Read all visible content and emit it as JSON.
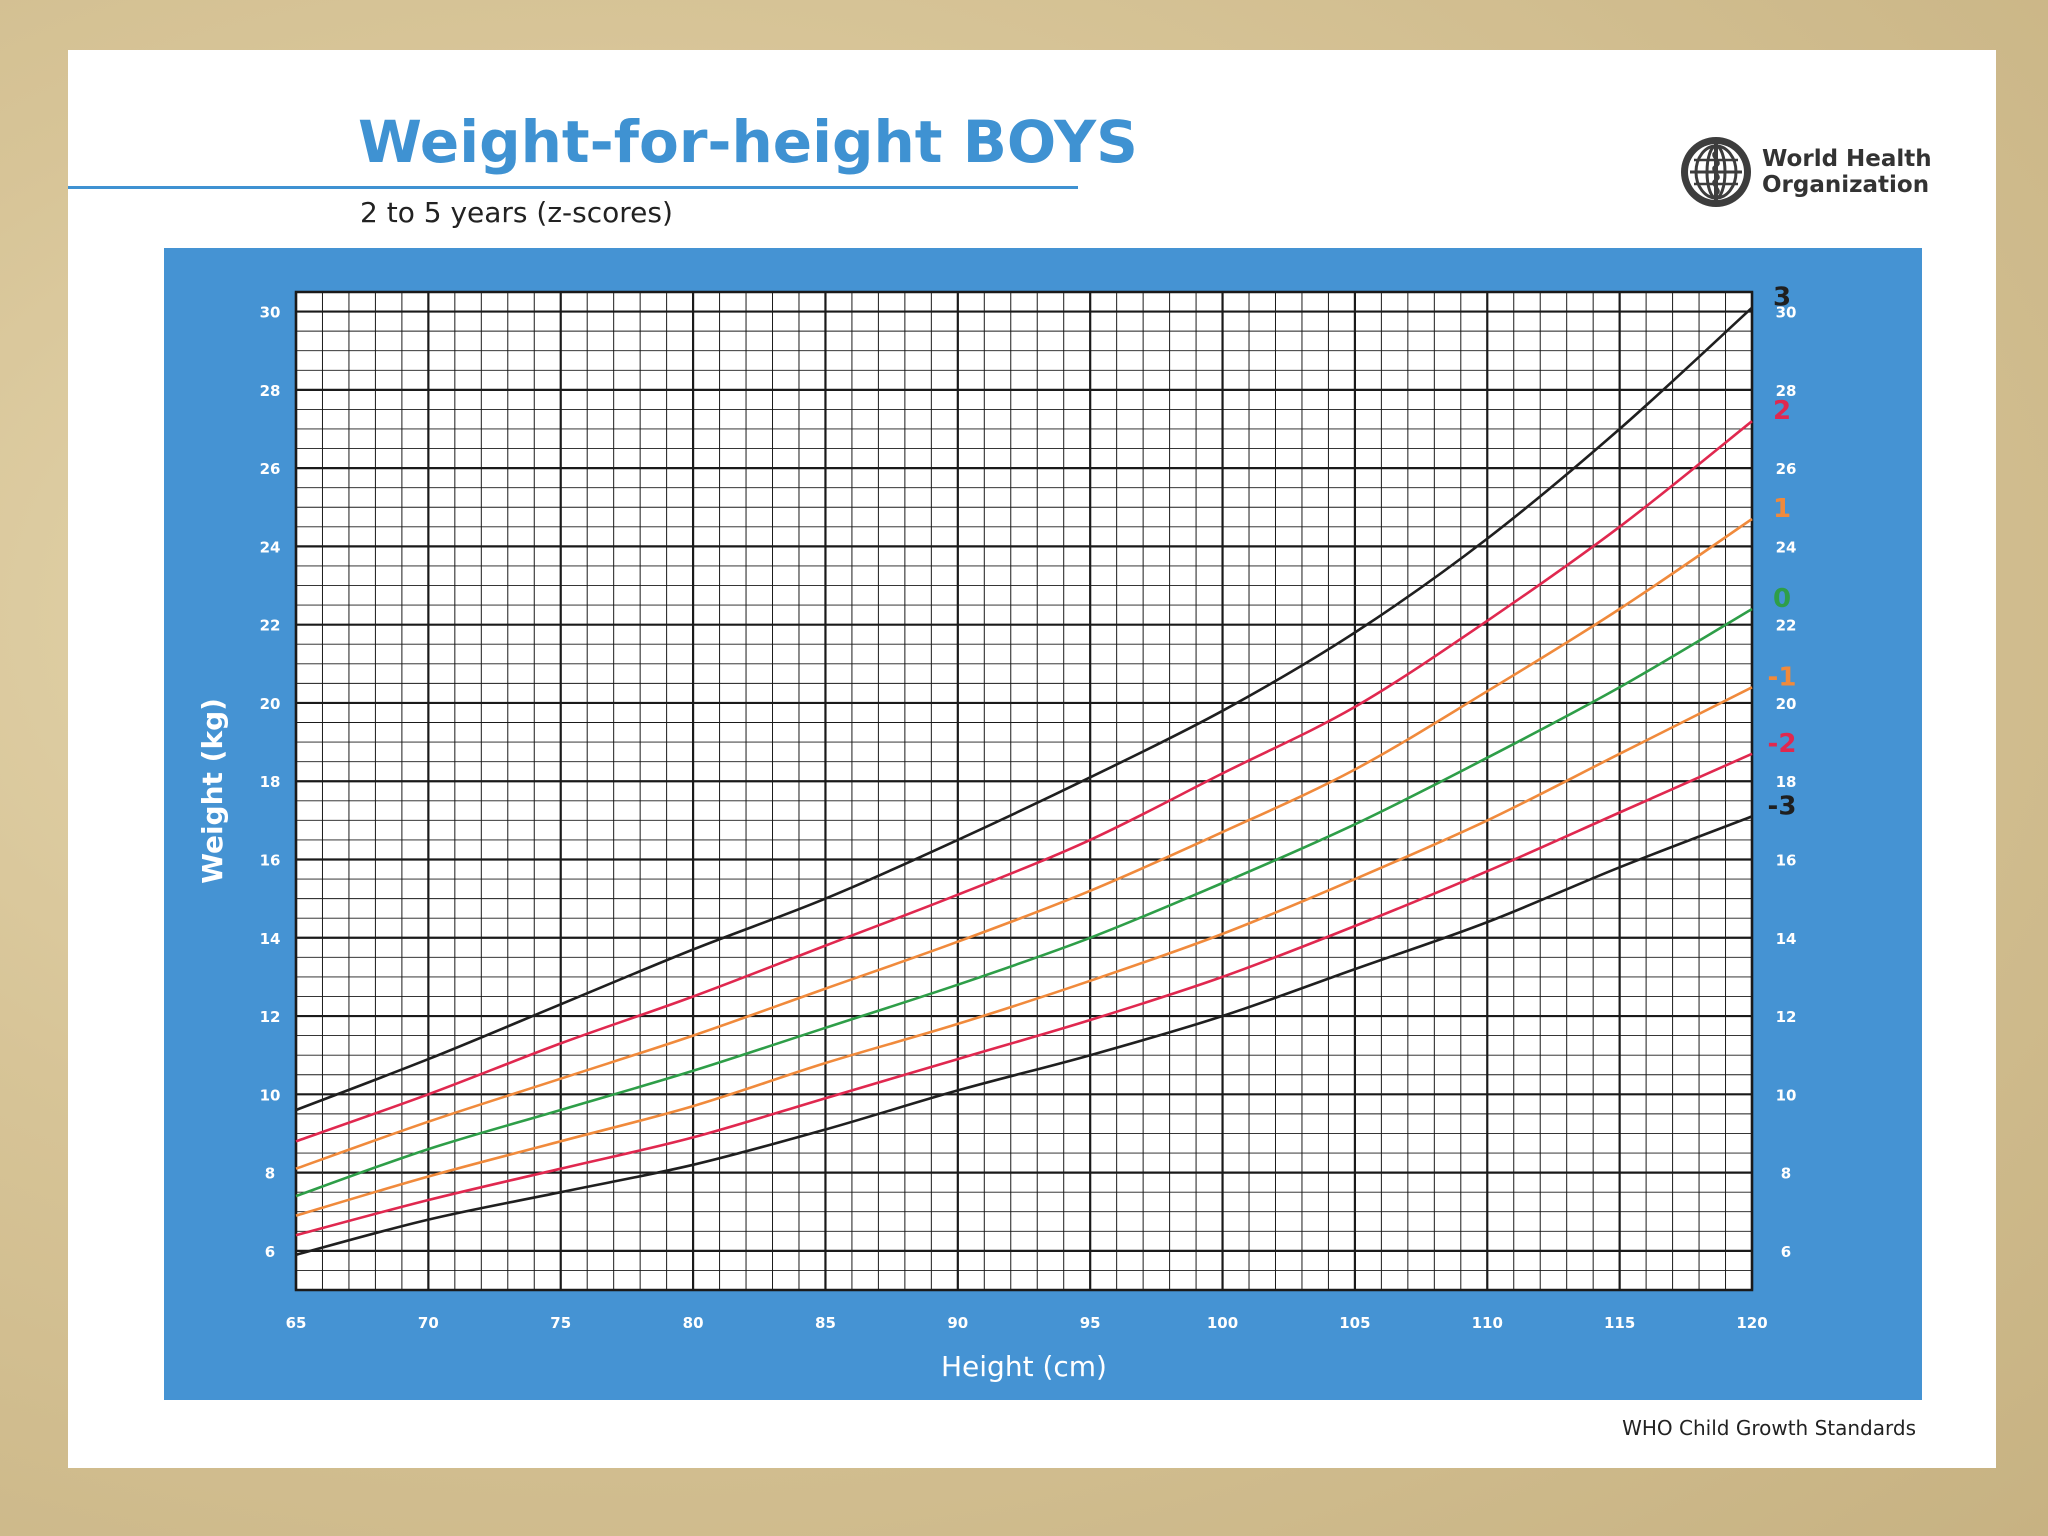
{
  "header": {
    "title": "Weight-for-height BOYS",
    "subtitle": "2 to 5 years (z-scores)",
    "logo_lines": [
      "World Health",
      "Organization"
    ]
  },
  "footer": {
    "text": "WHO Child Growth Standards"
  },
  "colors": {
    "brand_blue": "#4593d3",
    "grid": "#1a1a1a",
    "z3": "#1f1f1f",
    "z2": "#e0284f",
    "z1": "#f08a3c",
    "z0": "#2e9e48"
  },
  "chart_data": {
    "type": "line",
    "title": "Weight-for-height BOYS",
    "subtitle": "2 to 5 years (z-scores)",
    "xlabel": "Height (cm)",
    "ylabel": "Weight (kg)",
    "xlim": [
      65,
      120
    ],
    "ylim": [
      5,
      30.5
    ],
    "x_ticks": [
      "65",
      "70",
      "75",
      "80",
      "85",
      "90",
      "95",
      "100",
      "105",
      "110",
      "115",
      "120"
    ],
    "y_ticks": [
      "6",
      "8",
      "10",
      "12",
      "14",
      "16",
      "18",
      "20",
      "22",
      "24",
      "26",
      "28",
      "30"
    ],
    "grid": true,
    "x": [
      65,
      70,
      75,
      80,
      85,
      90,
      95,
      100,
      105,
      110,
      115,
      120
    ],
    "series": [
      {
        "name": "3",
        "color": "#1f1f1f",
        "values": [
          9.6,
          10.9,
          12.3,
          13.7,
          15.0,
          16.5,
          18.1,
          19.8,
          21.8,
          24.2,
          27.0,
          30.1
        ]
      },
      {
        "name": "2",
        "color": "#e0284f",
        "values": [
          8.8,
          10.0,
          11.3,
          12.5,
          13.8,
          15.1,
          16.5,
          18.2,
          19.9,
          22.1,
          24.5,
          27.2
        ]
      },
      {
        "name": "1",
        "color": "#f08a3c",
        "values": [
          8.1,
          9.3,
          10.4,
          11.5,
          12.7,
          13.9,
          15.2,
          16.7,
          18.3,
          20.3,
          22.4,
          24.7
        ]
      },
      {
        "name": "0",
        "color": "#2e9e48",
        "values": [
          7.4,
          8.6,
          9.6,
          10.6,
          11.7,
          12.8,
          14.0,
          15.4,
          16.9,
          18.6,
          20.4,
          22.4
        ]
      },
      {
        "name": "-1",
        "color": "#f08a3c",
        "values": [
          6.9,
          7.9,
          8.8,
          9.7,
          10.8,
          11.8,
          12.9,
          14.1,
          15.5,
          17.0,
          18.7,
          20.4
        ]
      },
      {
        "name": "-2",
        "color": "#e0284f",
        "values": [
          6.4,
          7.3,
          8.1,
          8.9,
          9.9,
          10.9,
          11.9,
          13.0,
          14.3,
          15.7,
          17.2,
          18.7
        ]
      },
      {
        "name": "-3",
        "color": "#1f1f1f",
        "values": [
          5.9,
          6.8,
          7.5,
          8.2,
          9.1,
          10.1,
          11.0,
          12.0,
          13.2,
          14.4,
          15.8,
          17.1
        ]
      }
    ]
  }
}
